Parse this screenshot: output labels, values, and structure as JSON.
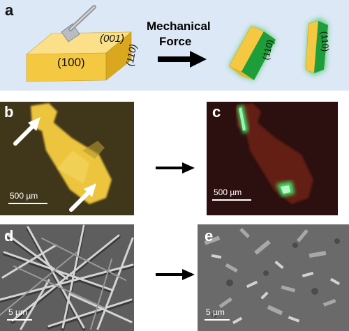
{
  "panel_a": {
    "label": "a",
    "face_001": "(001)",
    "face_100": "(100)",
    "face_110": "(110)",
    "arrow_text_1": "Mechanical",
    "arrow_text_2": "Force",
    "product_face_1": "(110)",
    "product_face_2": "(110)",
    "colors": {
      "background": "#dce8f5",
      "crystal": "#f5c842",
      "glow": "#2fbf4a"
    }
  },
  "panel_b": {
    "label": "b",
    "scale_bar": "500 µm"
  },
  "panel_c": {
    "label": "c",
    "scale_bar": "500 µm"
  },
  "panel_d": {
    "label": "d",
    "scale_bar": "5 µm"
  },
  "panel_e": {
    "label": "e",
    "scale_bar": "5 µm"
  }
}
